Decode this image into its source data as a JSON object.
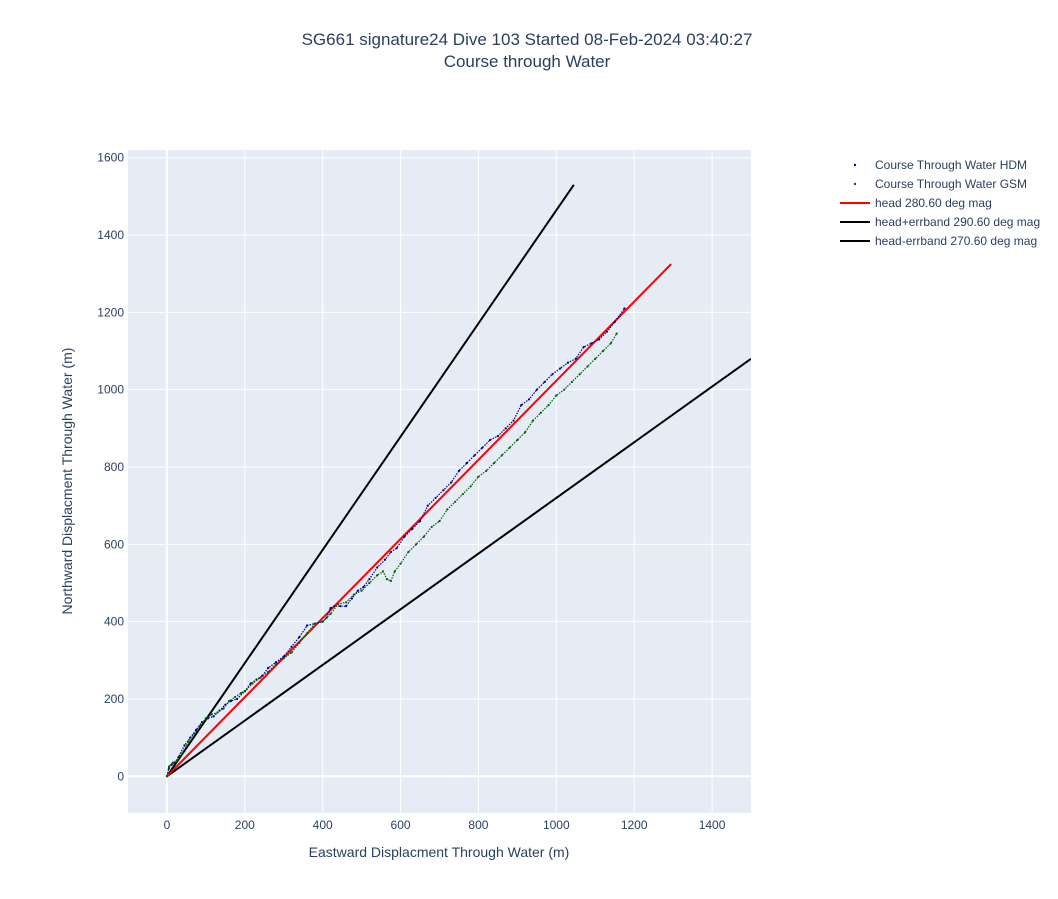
{
  "chart_data": {
    "type": "line",
    "title_line1": "SG661 signature24 Dive 103 Started 08-Feb-2024 03:40:27",
    "title_line2": "Course through Water",
    "xlabel": "Eastward Displacment Through Water (m)",
    "ylabel": "Northward Displacment Through Water (m)",
    "xlim": [
      -100,
      1500
    ],
    "ylim": [
      -95,
      1620
    ],
    "xticks": [
      0,
      200,
      400,
      600,
      800,
      1000,
      1200,
      1400
    ],
    "yticks": [
      0,
      200,
      400,
      600,
      800,
      1000,
      1200,
      1400,
      1600
    ],
    "grid": true,
    "legend_position": "top-right",
    "series": [
      {
        "name": "Course Through Water HDM",
        "color": "#00008b",
        "marker": "dot",
        "x": [
          0,
          5,
          12,
          20,
          30,
          45,
          60,
          75,
          90,
          105,
          120,
          135,
          150,
          165,
          180,
          200,
          215,
          230,
          245,
          260,
          280,
          300,
          320,
          340,
          360,
          380,
          400,
          410,
          420,
          430,
          445,
          460,
          475,
          490,
          505,
          520,
          540,
          560,
          575,
          590,
          610,
          630,
          650,
          670,
          690,
          710,
          730,
          750,
          770,
          790,
          810,
          830,
          850,
          870,
          890,
          910,
          930,
          950,
          970,
          990,
          1010,
          1030,
          1050,
          1070,
          1090,
          1110,
          1130,
          1150,
          1175
        ],
        "y": [
          0,
          20,
          30,
          35,
          50,
          80,
          100,
          120,
          140,
          150,
          155,
          170,
          185,
          195,
          200,
          220,
          240,
          250,
          260,
          280,
          295,
          310,
          335,
          360,
          390,
          395,
          400,
          410,
          435,
          440,
          440,
          440,
          460,
          480,
          490,
          510,
          540,
          560,
          580,
          590,
          620,
          640,
          660,
          700,
          720,
          740,
          760,
          790,
          810,
          830,
          850,
          870,
          880,
          900,
          920,
          960,
          975,
          1000,
          1020,
          1040,
          1055,
          1070,
          1080,
          1110,
          1120,
          1130,
          1150,
          1175,
          1210
        ]
      },
      {
        "name": "Course Through Water GSM",
        "color": "#006400",
        "marker": "dot",
        "x": [
          0,
          5,
          15,
          25,
          40,
          55,
          70,
          85,
          100,
          115,
          130,
          145,
          160,
          175,
          190,
          205,
          220,
          240,
          260,
          280,
          300,
          320,
          340,
          360,
          380,
          400,
          420,
          440,
          460,
          480,
          500,
          520,
          540,
          555,
          565,
          575,
          585,
          600,
          620,
          640,
          660,
          680,
          700,
          720,
          740,
          760,
          780,
          800,
          820,
          840,
          860,
          880,
          900,
          920,
          940,
          960,
          980,
          1000,
          1020,
          1040,
          1060,
          1080,
          1100,
          1120,
          1140,
          1155
        ],
        "y": [
          0,
          25,
          35,
          40,
          60,
          90,
          110,
          130,
          150,
          160,
          165,
          175,
          195,
          205,
          215,
          225,
          240,
          255,
          270,
          290,
          305,
          320,
          345,
          370,
          395,
          400,
          420,
          445,
          450,
          470,
          480,
          500,
          520,
          530,
          510,
          505,
          530,
          550,
          580,
          600,
          620,
          645,
          660,
          690,
          710,
          730,
          750,
          775,
          790,
          810,
          830,
          850,
          870,
          890,
          920,
          940,
          960,
          985,
          1000,
          1020,
          1040,
          1060,
          1080,
          1100,
          1120,
          1145
        ]
      },
      {
        "name": "head 280.60 deg mag",
        "color": "#ff0000",
        "x": [
          0,
          1295
        ],
        "y": [
          0,
          1325
        ]
      },
      {
        "name": "head+errband 290.60 deg mag",
        "color": "#000000",
        "x": [
          0,
          1045
        ],
        "y": [
          0,
          1530
        ]
      },
      {
        "name": "head-errband 270.60 deg mag",
        "color": "#000000",
        "x": [
          0,
          1500
        ],
        "y": [
          0,
          1080
        ]
      }
    ]
  }
}
